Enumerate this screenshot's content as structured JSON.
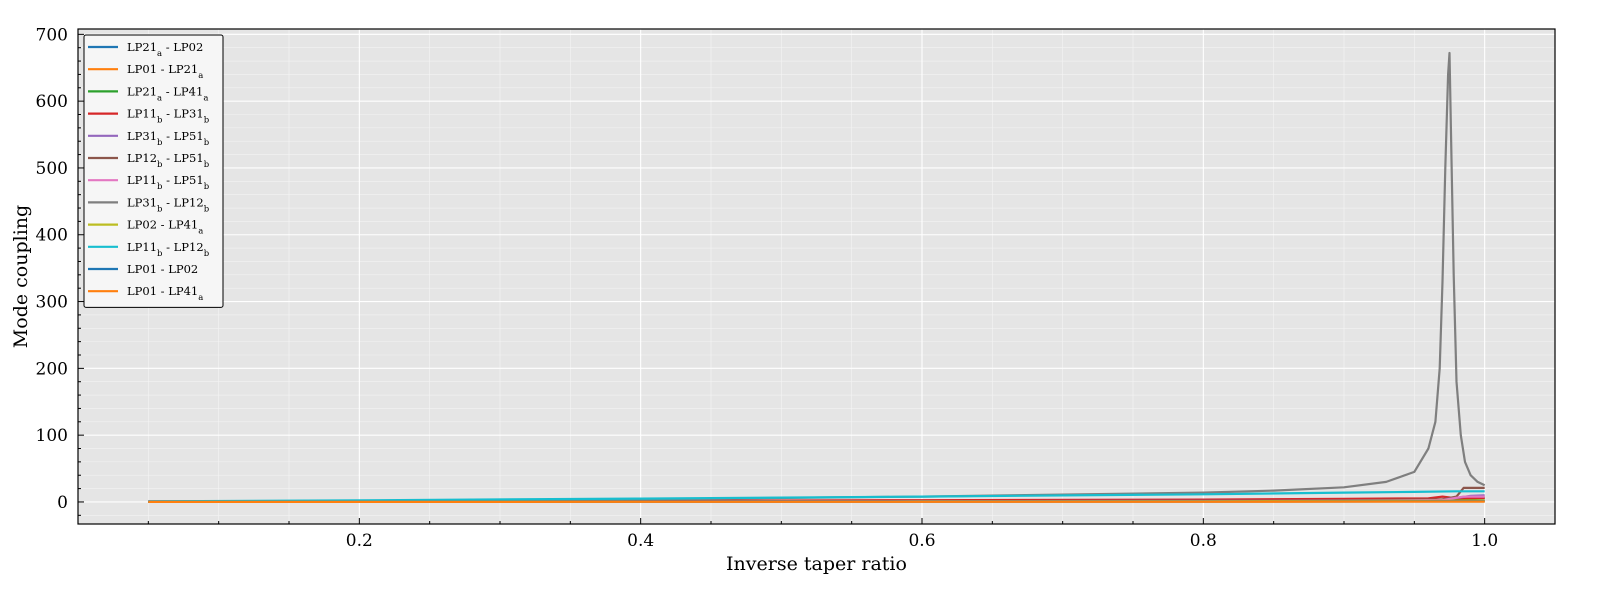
{
  "chart_data": {
    "type": "line",
    "title": "",
    "xlabel": "Inverse taper ratio",
    "ylabel": "Mode coupling",
    "xlim": [
      0.0,
      1.05
    ],
    "ylim": [
      -33,
      708
    ],
    "xticks": [
      0.2,
      0.4,
      0.6,
      0.8,
      1.0
    ],
    "xtick_labels": [
      "0.2",
      "0.4",
      "0.6",
      "0.8",
      "1.0"
    ],
    "yticks": [
      0,
      100,
      200,
      300,
      400,
      500,
      600,
      700
    ],
    "ytick_labels": [
      "0",
      "100",
      "200",
      "300",
      "400",
      "500",
      "600",
      "700"
    ],
    "grid": true,
    "legend_position": "top-left",
    "series": [
      {
        "name": "LP21a - LP02",
        "label_parts": [
          [
            "LP21",
            "a"
          ],
          [
            " - LP02",
            ""
          ]
        ],
        "color": "#1f77b4",
        "x": [
          0.05,
          0.2,
          0.4,
          0.6,
          0.8,
          0.9,
          0.97,
          1.0
        ],
        "y": [
          0.5,
          0.6,
          0.8,
          1.0,
          1.3,
          1.6,
          2.0,
          2.5
        ]
      },
      {
        "name": "LP01 - LP21a",
        "label_parts": [
          [
            "LP01 - LP21",
            "a"
          ]
        ],
        "color": "#ff7f0e",
        "x": [
          0.05,
          0.2,
          0.4,
          0.6,
          0.8,
          0.9,
          0.97,
          1.0
        ],
        "y": [
          0.3,
          0.4,
          0.5,
          0.6,
          0.8,
          1.0,
          1.3,
          1.6
        ]
      },
      {
        "name": "LP21a - LP41a",
        "label_parts": [
          [
            "LP21",
            "a"
          ],
          [
            " - LP41",
            "a"
          ]
        ],
        "color": "#2ca02c",
        "x": [
          0.05,
          0.2,
          0.4,
          0.6,
          0.8,
          0.9,
          0.97,
          0.99,
          1.0
        ],
        "y": [
          0.5,
          0.7,
          1.0,
          1.4,
          2.0,
          2.6,
          3.5,
          5.0,
          6.0
        ]
      },
      {
        "name": "LP11b - LP31b",
        "label_parts": [
          [
            "LP11",
            "b"
          ],
          [
            " - LP31",
            "b"
          ]
        ],
        "color": "#d62728",
        "x": [
          0.05,
          0.2,
          0.4,
          0.6,
          0.8,
          0.9,
          0.96,
          0.97,
          0.98,
          1.0
        ],
        "y": [
          0.8,
          1.2,
          1.8,
          2.6,
          3.6,
          4.5,
          5.5,
          8.0,
          5.5,
          6.0
        ]
      },
      {
        "name": "LP31b - LP51b",
        "label_parts": [
          [
            "LP31",
            "b"
          ],
          [
            " - LP51",
            "b"
          ]
        ],
        "color": "#9467bd",
        "x": [
          0.05,
          0.2,
          0.4,
          0.6,
          0.8,
          0.9,
          0.97,
          0.99,
          1.0
        ],
        "y": [
          0.4,
          0.6,
          0.9,
          1.2,
          1.7,
          2.2,
          3.0,
          9.0,
          10.0
        ]
      },
      {
        "name": "LP12b - LP51b",
        "label_parts": [
          [
            "LP12",
            "b"
          ],
          [
            " - LP51",
            "b"
          ]
        ],
        "color": "#8c564b",
        "x": [
          0.05,
          0.2,
          0.4,
          0.6,
          0.8,
          0.9,
          0.97,
          0.98,
          0.985,
          1.0
        ],
        "y": [
          0.3,
          0.5,
          0.8,
          1.2,
          1.8,
          2.5,
          4.0,
          8.0,
          21.0,
          21.0
        ]
      },
      {
        "name": "LP11b - LP51b",
        "label_parts": [
          [
            "LP11",
            "b"
          ],
          [
            " - LP51",
            "b"
          ]
        ],
        "color": "#e377c2",
        "x": [
          0.05,
          0.2,
          0.4,
          0.6,
          0.8,
          0.9,
          0.97,
          0.985,
          1.0
        ],
        "y": [
          0.2,
          0.4,
          0.6,
          0.9,
          1.3,
          1.8,
          2.8,
          8.0,
          8.0
        ]
      },
      {
        "name": "LP31b - LP12b",
        "label_parts": [
          [
            "LP31",
            "b"
          ],
          [
            " - LP12",
            "b"
          ]
        ],
        "color": "#7f7f7f",
        "x": [
          0.05,
          0.2,
          0.4,
          0.6,
          0.7,
          0.8,
          0.85,
          0.9,
          0.93,
          0.95,
          0.96,
          0.965,
          0.968,
          0.97,
          0.972,
          0.974,
          0.975,
          0.976,
          0.978,
          0.98,
          0.983,
          0.986,
          0.99,
          0.995,
          1.0
        ],
        "y": [
          0.5,
          1.5,
          4.0,
          8.0,
          11.0,
          14.0,
          17.0,
          22.0,
          30.0,
          45.0,
          80.0,
          120.0,
          200.0,
          330.0,
          500.0,
          640.0,
          672.0,
          560.0,
          340.0,
          180.0,
          100.0,
          60.0,
          40.0,
          30.0,
          25.0
        ]
      },
      {
        "name": "LP02 - LP41a",
        "label_parts": [
          [
            "LP02 - LP41",
            "a"
          ]
        ],
        "color": "#bcbd22",
        "x": [
          0.05,
          0.2,
          0.4,
          0.6,
          0.8,
          0.9,
          0.97,
          1.0
        ],
        "y": [
          0.3,
          0.4,
          0.6,
          0.8,
          1.1,
          1.4,
          1.8,
          2.2
        ]
      },
      {
        "name": "LP11b - LP12b",
        "label_parts": [
          [
            "LP11",
            "b"
          ],
          [
            " - LP12",
            "b"
          ]
        ],
        "color": "#17becf",
        "x": [
          0.05,
          0.2,
          0.4,
          0.6,
          0.8,
          0.9,
          0.95,
          0.98,
          1.0
        ],
        "y": [
          1.0,
          2.5,
          5.0,
          8.0,
          11.5,
          14.0,
          15.0,
          16.0,
          16.0
        ]
      },
      {
        "name": "LP01 - LP02",
        "label_parts": [
          [
            "LP01 - LP02",
            ""
          ]
        ],
        "color": "#1f77b4",
        "x": [
          0.05,
          0.2,
          0.4,
          0.6,
          0.8,
          0.9,
          0.97,
          1.0
        ],
        "y": [
          0.2,
          0.3,
          0.4,
          0.5,
          0.6,
          0.7,
          0.8,
          0.9
        ]
      },
      {
        "name": "LP01 - LP41a",
        "label_parts": [
          [
            "LP01 - LP41",
            "a"
          ]
        ],
        "color": "#ff7f0e",
        "x": [
          0.05,
          0.2,
          0.4,
          0.6,
          0.8,
          0.9,
          0.97,
          1.0
        ],
        "y": [
          0.1,
          0.15,
          0.2,
          0.25,
          0.3,
          0.35,
          0.4,
          0.45
        ]
      }
    ]
  }
}
